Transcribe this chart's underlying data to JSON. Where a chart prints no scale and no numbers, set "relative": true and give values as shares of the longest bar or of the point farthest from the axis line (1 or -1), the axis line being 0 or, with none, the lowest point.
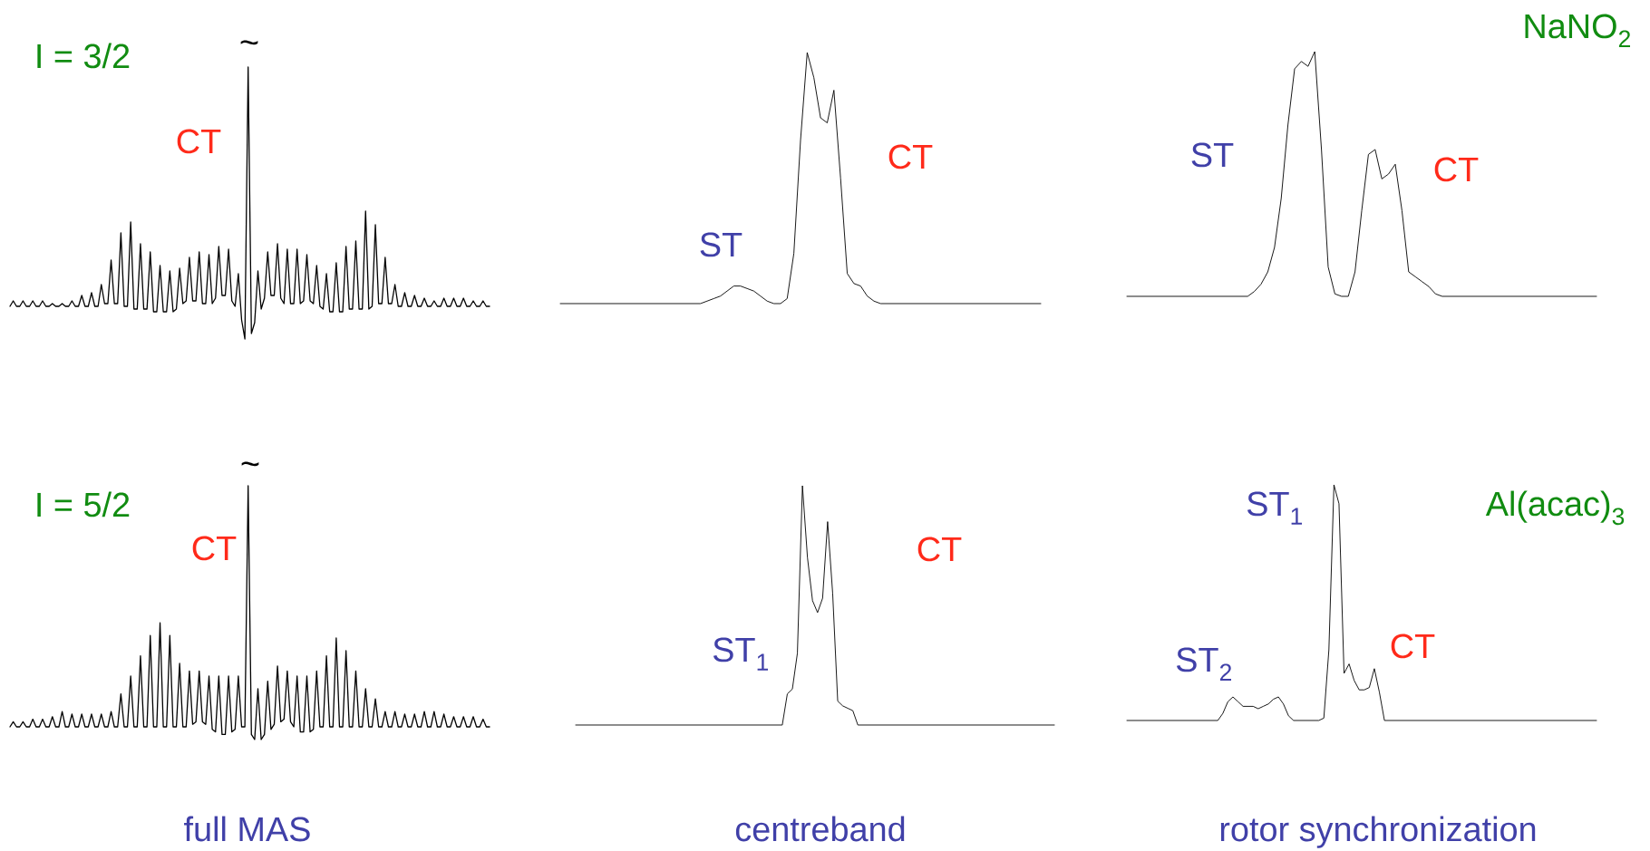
{
  "chart_data": [
    {
      "type": "line",
      "relative": true,
      "annotations": [
        "I = 3/2",
        "~",
        "CT"
      ],
      "categories": [
        null,
        null,
        null,
        null,
        null,
        null,
        null,
        null,
        null,
        null,
        null,
        null,
        null,
        null,
        null,
        null,
        null,
        null,
        null,
        null,
        null,
        null,
        null,
        null,
        null,
        null,
        null,
        null,
        null,
        null,
        null,
        null,
        null,
        null,
        null,
        null,
        null,
        null,
        null,
        null,
        null,
        null,
        null,
        null,
        null,
        null,
        null,
        null,
        null,
        null,
        null,
        null,
        null,
        null,
        null,
        null,
        null,
        null,
        null,
        null,
        null,
        null,
        null,
        null,
        null,
        null,
        null,
        null,
        null,
        null,
        null,
        null,
        null,
        null,
        null,
        null,
        null,
        null,
        null,
        null,
        null,
        null,
        null,
        null,
        null,
        null,
        null,
        null,
        null,
        null,
        null,
        null,
        null,
        null,
        null,
        null,
        null,
        null,
        null,
        null,
        null,
        null,
        null,
        null,
        null,
        null,
        null,
        null,
        null,
        null,
        null,
        null,
        null,
        null,
        null,
        null,
        null,
        null,
        null,
        null,
        null,
        null,
        null,
        null,
        null,
        null,
        null,
        null,
        null,
        null,
        null,
        null,
        null,
        null,
        null,
        null,
        null,
        null,
        null,
        null,
        null,
        null,
        null,
        null,
        null,
        null,
        null,
        null
      ],
      "series": [
        {
          "color": "#000000",
          "values": [
            0.12,
            0.14,
            0.12,
            0.12,
            0.14,
            0.12,
            0.12,
            0.14,
            0.12,
            0.12,
            0.14,
            0.12,
            0.12,
            0.13,
            0.12,
            0.12,
            0.13,
            0.12,
            0.12,
            0.14,
            0.12,
            0.12,
            0.16,
            0.12,
            0.12,
            0.17,
            0.12,
            0.12,
            0.2,
            0.13,
            0.13,
            0.29,
            0.13,
            0.13,
            0.39,
            0.12,
            0.12,
            0.43,
            0.11,
            0.11,
            0.35,
            0.11,
            0.11,
            0.32,
            0.1,
            0.1,
            0.27,
            0.1,
            0.1,
            0.25,
            0.1,
            0.11,
            0.26,
            0.13,
            0.14,
            0.3,
            0.14,
            0.14,
            0.32,
            0.13,
            0.13,
            0.31,
            0.13,
            0.15,
            0.34,
            0.16,
            0.16,
            0.33,
            0.14,
            0.12,
            0.24,
            0.07,
            0.0,
            1,
            0.02,
            0.06,
            0.25,
            0.11,
            0.15,
            0.32,
            0.16,
            0.16,
            0.35,
            0.15,
            0.13,
            0.33,
            0.13,
            0.13,
            0.33,
            0.13,
            0.14,
            0.31,
            0.14,
            0.13,
            0.27,
            0.12,
            0.11,
            0.24,
            0.1,
            0.1,
            0.28,
            0.1,
            0.1,
            0.34,
            0.11,
            0.11,
            0.36,
            0.11,
            0.11,
            0.47,
            0.11,
            0.12,
            0.42,
            0.13,
            0.13,
            0.3,
            0.13,
            0.13,
            0.2,
            0.12,
            0.12,
            0.17,
            0.12,
            0.12,
            0.16,
            0.12,
            0.12,
            0.15,
            0.12,
            0.12,
            0.14,
            0.12,
            0.12,
            0.15,
            0.12,
            0.12,
            0.15,
            0.12,
            0.12,
            0.15,
            0.12,
            0.12,
            0.14,
            0.12,
            0.12,
            0.14,
            0.12,
            0.12
          ]
        }
      ]
    },
    {
      "type": "line",
      "relative": true,
      "annotations": [
        "ST",
        "CT"
      ],
      "categories": [
        null,
        null,
        null,
        null,
        null,
        null,
        null,
        null,
        null,
        null,
        null,
        null,
        null,
        null,
        null,
        null,
        null,
        null,
        null,
        null,
        null,
        null,
        null,
        null,
        null,
        null,
        null,
        null,
        null,
        null,
        null,
        null,
        null,
        null,
        null,
        null,
        null,
        null,
        null,
        null,
        null,
        null,
        null,
        null,
        null,
        null,
        null,
        null,
        null,
        null,
        null,
        null,
        null,
        null,
        null,
        null,
        null,
        null,
        null,
        null,
        null,
        null,
        null,
        null,
        null,
        null,
        null,
        null,
        null,
        null,
        null,
        null,
        null
      ],
      "series": [
        {
          "color": "#000000",
          "values": [
            0,
            0,
            0,
            0,
            0,
            0,
            0,
            0,
            0,
            0,
            0,
            0,
            0,
            0,
            0,
            0,
            0,
            0,
            0,
            0,
            0,
            0,
            0.01,
            0.02,
            0.03,
            0.05,
            0.07,
            0.07,
            0.06,
            0.05,
            0.03,
            0.01,
            0,
            0,
            0.02,
            0.2,
            0.65,
            1,
            0.9,
            0.74,
            0.72,
            0.85,
            0.5,
            0.12,
            0.08,
            0.07,
            0.03,
            0.01,
            0,
            0,
            0,
            0,
            0,
            0,
            0,
            0,
            0,
            0,
            0,
            0,
            0,
            0,
            0,
            0,
            0,
            0,
            0,
            0,
            0,
            0,
            0,
            0,
            0
          ]
        }
      ]
    },
    {
      "type": "line",
      "relative": true,
      "annotations": [
        "NaNO$_{2}$",
        "ST",
        "CT"
      ],
      "categories": [
        null,
        null,
        null,
        null,
        null,
        null,
        null,
        null,
        null,
        null,
        null,
        null,
        null,
        null,
        null,
        null,
        null,
        null,
        null,
        null,
        null,
        null,
        null,
        null,
        null,
        null,
        null,
        null,
        null,
        null,
        null,
        null,
        null,
        null,
        null,
        null,
        null,
        null,
        null,
        null,
        null,
        null,
        null,
        null,
        null,
        null,
        null,
        null,
        null,
        null,
        null,
        null,
        null,
        null,
        null,
        null,
        null,
        null,
        null,
        null,
        null,
        null,
        null,
        null,
        null,
        null,
        null,
        null,
        null,
        null,
        null
      ],
      "series": [
        {
          "color": "#000000",
          "values": [
            0,
            0,
            0,
            0,
            0,
            0,
            0,
            0,
            0,
            0,
            0,
            0,
            0,
            0,
            0,
            0,
            0,
            0,
            0,
            0.02,
            0.05,
            0.1,
            0.2,
            0.4,
            0.7,
            0.93,
            0.96,
            0.94,
            1,
            0.6,
            0.12,
            0.01,
            0,
            0,
            0.1,
            0.35,
            0.58,
            0.6,
            0.48,
            0.5,
            0.54,
            0.35,
            0.1,
            0.08,
            0.06,
            0.04,
            0.01,
            0,
            0,
            0,
            0,
            0,
            0,
            0,
            0,
            0,
            0,
            0,
            0,
            0,
            0,
            0,
            0,
            0,
            0,
            0,
            0,
            0,
            0,
            0,
            0
          ]
        }
      ]
    },
    {
      "type": "line",
      "relative": true,
      "xlabel": "full MAS",
      "annotations": [
        "I = 5/2",
        "~",
        "CT"
      ],
      "categories": [
        null,
        null,
        null,
        null,
        null,
        null,
        null,
        null,
        null,
        null,
        null,
        null,
        null,
        null,
        null,
        null,
        null,
        null,
        null,
        null,
        null,
        null,
        null,
        null,
        null,
        null,
        null,
        null,
        null,
        null,
        null,
        null,
        null,
        null,
        null,
        null,
        null,
        null,
        null,
        null,
        null,
        null,
        null,
        null,
        null,
        null,
        null,
        null,
        null,
        null,
        null,
        null,
        null,
        null,
        null,
        null,
        null,
        null,
        null,
        null,
        null,
        null,
        null,
        null,
        null,
        null,
        null,
        null,
        null,
        null,
        null,
        null,
        null,
        null,
        null,
        null,
        null,
        null,
        null,
        null,
        null,
        null,
        null,
        null,
        null,
        null,
        null,
        null,
        null,
        null,
        null,
        null,
        null,
        null,
        null,
        null,
        null,
        null,
        null,
        null,
        null,
        null,
        null,
        null,
        null,
        null,
        null,
        null,
        null,
        null,
        null,
        null,
        null,
        null,
        null,
        null,
        null,
        null,
        null,
        null,
        null,
        null,
        null,
        null,
        null,
        null,
        null,
        null,
        null,
        null,
        null,
        null,
        null,
        null,
        null,
        null,
        null,
        null,
        null,
        null,
        null,
        null,
        null,
        null,
        null,
        null,
        null,
        null
      ],
      "series": [
        {
          "color": "#000000",
          "values": [
            0.05,
            0.07,
            0.05,
            0.05,
            0.07,
            0.05,
            0.05,
            0.08,
            0.05,
            0.05,
            0.08,
            0.05,
            0.05,
            0.09,
            0.05,
            0.05,
            0.11,
            0.05,
            0.05,
            0.1,
            0.05,
            0.05,
            0.1,
            0.05,
            0.05,
            0.1,
            0.05,
            0.05,
            0.1,
            0.05,
            0.05,
            0.11,
            0.05,
            0.05,
            0.18,
            0.05,
            0.05,
            0.25,
            0.05,
            0.05,
            0.33,
            0.05,
            0.05,
            0.41,
            0.05,
            0.05,
            0.46,
            0.05,
            0.05,
            0.41,
            0.05,
            0.05,
            0.3,
            0.05,
            0.05,
            0.27,
            0.06,
            0.07,
            0.27,
            0.07,
            0.06,
            0.25,
            0.04,
            0.03,
            0.25,
            0.02,
            0.02,
            0.25,
            0.03,
            0.04,
            0.25,
            0.05,
            0.05,
            1,
            0.02,
            0.0,
            0.2,
            0.0,
            0.02,
            0.23,
            0.04,
            0.06,
            0.29,
            0.07,
            0.08,
            0.27,
            0.07,
            0.05,
            0.25,
            0.03,
            0.03,
            0.25,
            0.03,
            0.04,
            0.27,
            0.05,
            0.05,
            0.33,
            0.05,
            0.05,
            0.4,
            0.05,
            0.05,
            0.35,
            0.05,
            0.05,
            0.27,
            0.05,
            0.05,
            0.2,
            0.05,
            0.05,
            0.16,
            0.05,
            0.05,
            0.11,
            0.05,
            0.05,
            0.11,
            0.05,
            0.05,
            0.1,
            0.05,
            0.05,
            0.1,
            0.05,
            0.05,
            0.11,
            0.05,
            0.05,
            0.11,
            0.05,
            0.05,
            0.1,
            0.05,
            0.05,
            0.09,
            0.05,
            0.05,
            0.09,
            0.05,
            0.05,
            0.09,
            0.05,
            0.05,
            0.08,
            0.05,
            0.05
          ]
        }
      ]
    },
    {
      "type": "line",
      "relative": true,
      "xlabel": "centreband",
      "annotations": [
        "ST$_{1}$",
        "CT"
      ],
      "categories": [
        null,
        null,
        null,
        null,
        null,
        null,
        null,
        null,
        null,
        null,
        null,
        null,
        null,
        null,
        null,
        null,
        null,
        null,
        null,
        null,
        null,
        null,
        null,
        null,
        null,
        null,
        null,
        null,
        null,
        null,
        null,
        null,
        null,
        null,
        null,
        null,
        null,
        null,
        null,
        null,
        null,
        null,
        null,
        null,
        null,
        null,
        null,
        null,
        null,
        null,
        null,
        null,
        null,
        null,
        null,
        null,
        null,
        null,
        null,
        null,
        null,
        null,
        null,
        null,
        null,
        null,
        null,
        null,
        null,
        null,
        null,
        null,
        null,
        null,
        null,
        null,
        null,
        null,
        null,
        null,
        null,
        null,
        null,
        null,
        null,
        null,
        null,
        null,
        null,
        null,
        null,
        null,
        null,
        null,
        null,
        null
      ],
      "series": [
        {
          "color": "#000000",
          "values": [
            0,
            0,
            0,
            0,
            0,
            0,
            0,
            0,
            0,
            0,
            0,
            0,
            0,
            0,
            0,
            0,
            0,
            0,
            0,
            0,
            0,
            0,
            0,
            0,
            0,
            0,
            0,
            0,
            0,
            0,
            0,
            0,
            0,
            0,
            0,
            0,
            0,
            0,
            0,
            0,
            0,
            0,
            0.13,
            0.15,
            0.3,
            1,
            0.7,
            0.52,
            0.47,
            0.53,
            0.85,
            0.55,
            0.1,
            0.08,
            0.07,
            0.06,
            0,
            0,
            0,
            0,
            0,
            0,
            0,
            0,
            0,
            0,
            0,
            0,
            0,
            0,
            0,
            0,
            0,
            0,
            0,
            0,
            0,
            0,
            0,
            0,
            0,
            0,
            0,
            0,
            0,
            0,
            0,
            0,
            0,
            0,
            0,
            0,
            0,
            0,
            0,
            0
          ]
        }
      ]
    },
    {
      "type": "line",
      "relative": true,
      "xlabel": "rotor synchronization",
      "annotations": [
        "ST$_{1}$",
        "ST$_{2}$",
        "CT",
        "Al(acac)$_{3}$"
      ],
      "categories": [
        null,
        null,
        null,
        null,
        null,
        null,
        null,
        null,
        null,
        null,
        null,
        null,
        null,
        null,
        null,
        null,
        null,
        null,
        null,
        null,
        null,
        null,
        null,
        null,
        null,
        null,
        null,
        null,
        null,
        null,
        null,
        null,
        null,
        null,
        null,
        null,
        null,
        null,
        null,
        null,
        null,
        null,
        null,
        null,
        null,
        null,
        null,
        null,
        null,
        null,
        null,
        null,
        null,
        null,
        null,
        null,
        null,
        null,
        null,
        null,
        null,
        null,
        null,
        null,
        null,
        null,
        null,
        null,
        null,
        null,
        null,
        null,
        null,
        null,
        null,
        null,
        null,
        null,
        null,
        null,
        null,
        null,
        null,
        null,
        null,
        null,
        null,
        null,
        null,
        null,
        null,
        null,
        null,
        null
      ],
      "series": [
        {
          "color": "#000000",
          "values": [
            0,
            0,
            0,
            0,
            0,
            0,
            0,
            0,
            0,
            0,
            0,
            0,
            0,
            0,
            0,
            0,
            0,
            0,
            0,
            0.03,
            0.08,
            0.1,
            0.08,
            0.06,
            0.06,
            0.06,
            0.05,
            0.06,
            0.07,
            0.09,
            0.1,
            0.07,
            0.02,
            0,
            0,
            0,
            0,
            0,
            0,
            0.01,
            0.3,
            1,
            0.92,
            0.2,
            0.24,
            0.17,
            0.13,
            0.13,
            0.14,
            0.22,
            0.12,
            0,
            0,
            0,
            0,
            0,
            0,
            0,
            0,
            0,
            0,
            0,
            0,
            0,
            0,
            0,
            0,
            0,
            0,
            0,
            0,
            0,
            0,
            0,
            0,
            0,
            0,
            0,
            0,
            0,
            0,
            0,
            0,
            0,
            0,
            0,
            0,
            0,
            0,
            0,
            0,
            0,
            0,
            0
          ]
        }
      ]
    }
  ]
}
